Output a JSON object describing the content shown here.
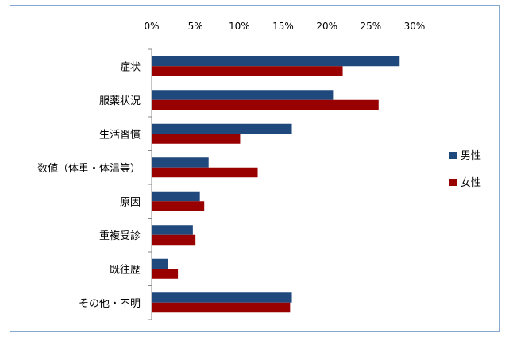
{
  "chart_data": {
    "type": "bar",
    "orientation": "horizontal",
    "categories": [
      "症状",
      "服薬状況",
      "生活習慣",
      "数値（体重・体温等）",
      "原因",
      "重複受診",
      "既往歴",
      "その他・不明"
    ],
    "series": [
      {
        "name": "男性",
        "color": "#1f497d",
        "values": [
          28.3,
          20.7,
          16.0,
          6.5,
          5.5,
          4.7,
          1.9,
          16.0
        ]
      },
      {
        "name": "女性",
        "color": "#990000",
        "values": [
          21.8,
          25.9,
          10.1,
          12.1,
          6.0,
          5.0,
          3.0,
          15.8
        ]
      }
    ],
    "xlim": [
      0,
      30
    ],
    "x_ticks": [
      "0%",
      "5%",
      "10%",
      "15%",
      "20%",
      "25%",
      "30%"
    ],
    "x_tick_values": [
      0,
      5,
      10,
      15,
      20,
      25,
      30
    ],
    "x_axis_position": "top",
    "grid": false,
    "legend_position": "right",
    "title": "",
    "xlabel": "",
    "ylabel": ""
  }
}
